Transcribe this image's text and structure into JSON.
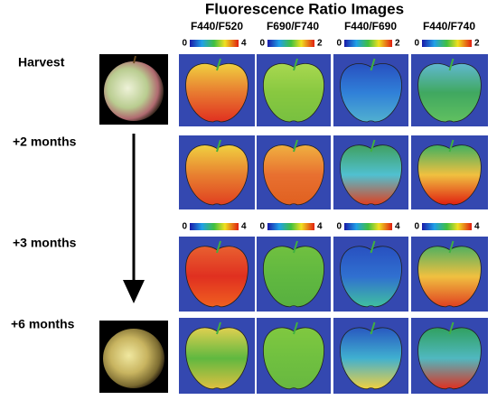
{
  "figure": {
    "title": "Fluorescence Ratio Images",
    "columns": [
      "F440/F520",
      "F690/F740",
      "F440/F690",
      "F440/F740"
    ],
    "rows": [
      "Harvest",
      "+2 months",
      "+3 months",
      "+6 months"
    ],
    "scales_top": [
      [
        0,
        4
      ],
      [
        0,
        2
      ],
      [
        0,
        2
      ],
      [
        0,
        2
      ]
    ],
    "scales_middle": [
      [
        0,
        4
      ],
      [
        0,
        4
      ],
      [
        0,
        4
      ],
      [
        0,
        4
      ]
    ]
  }
}
